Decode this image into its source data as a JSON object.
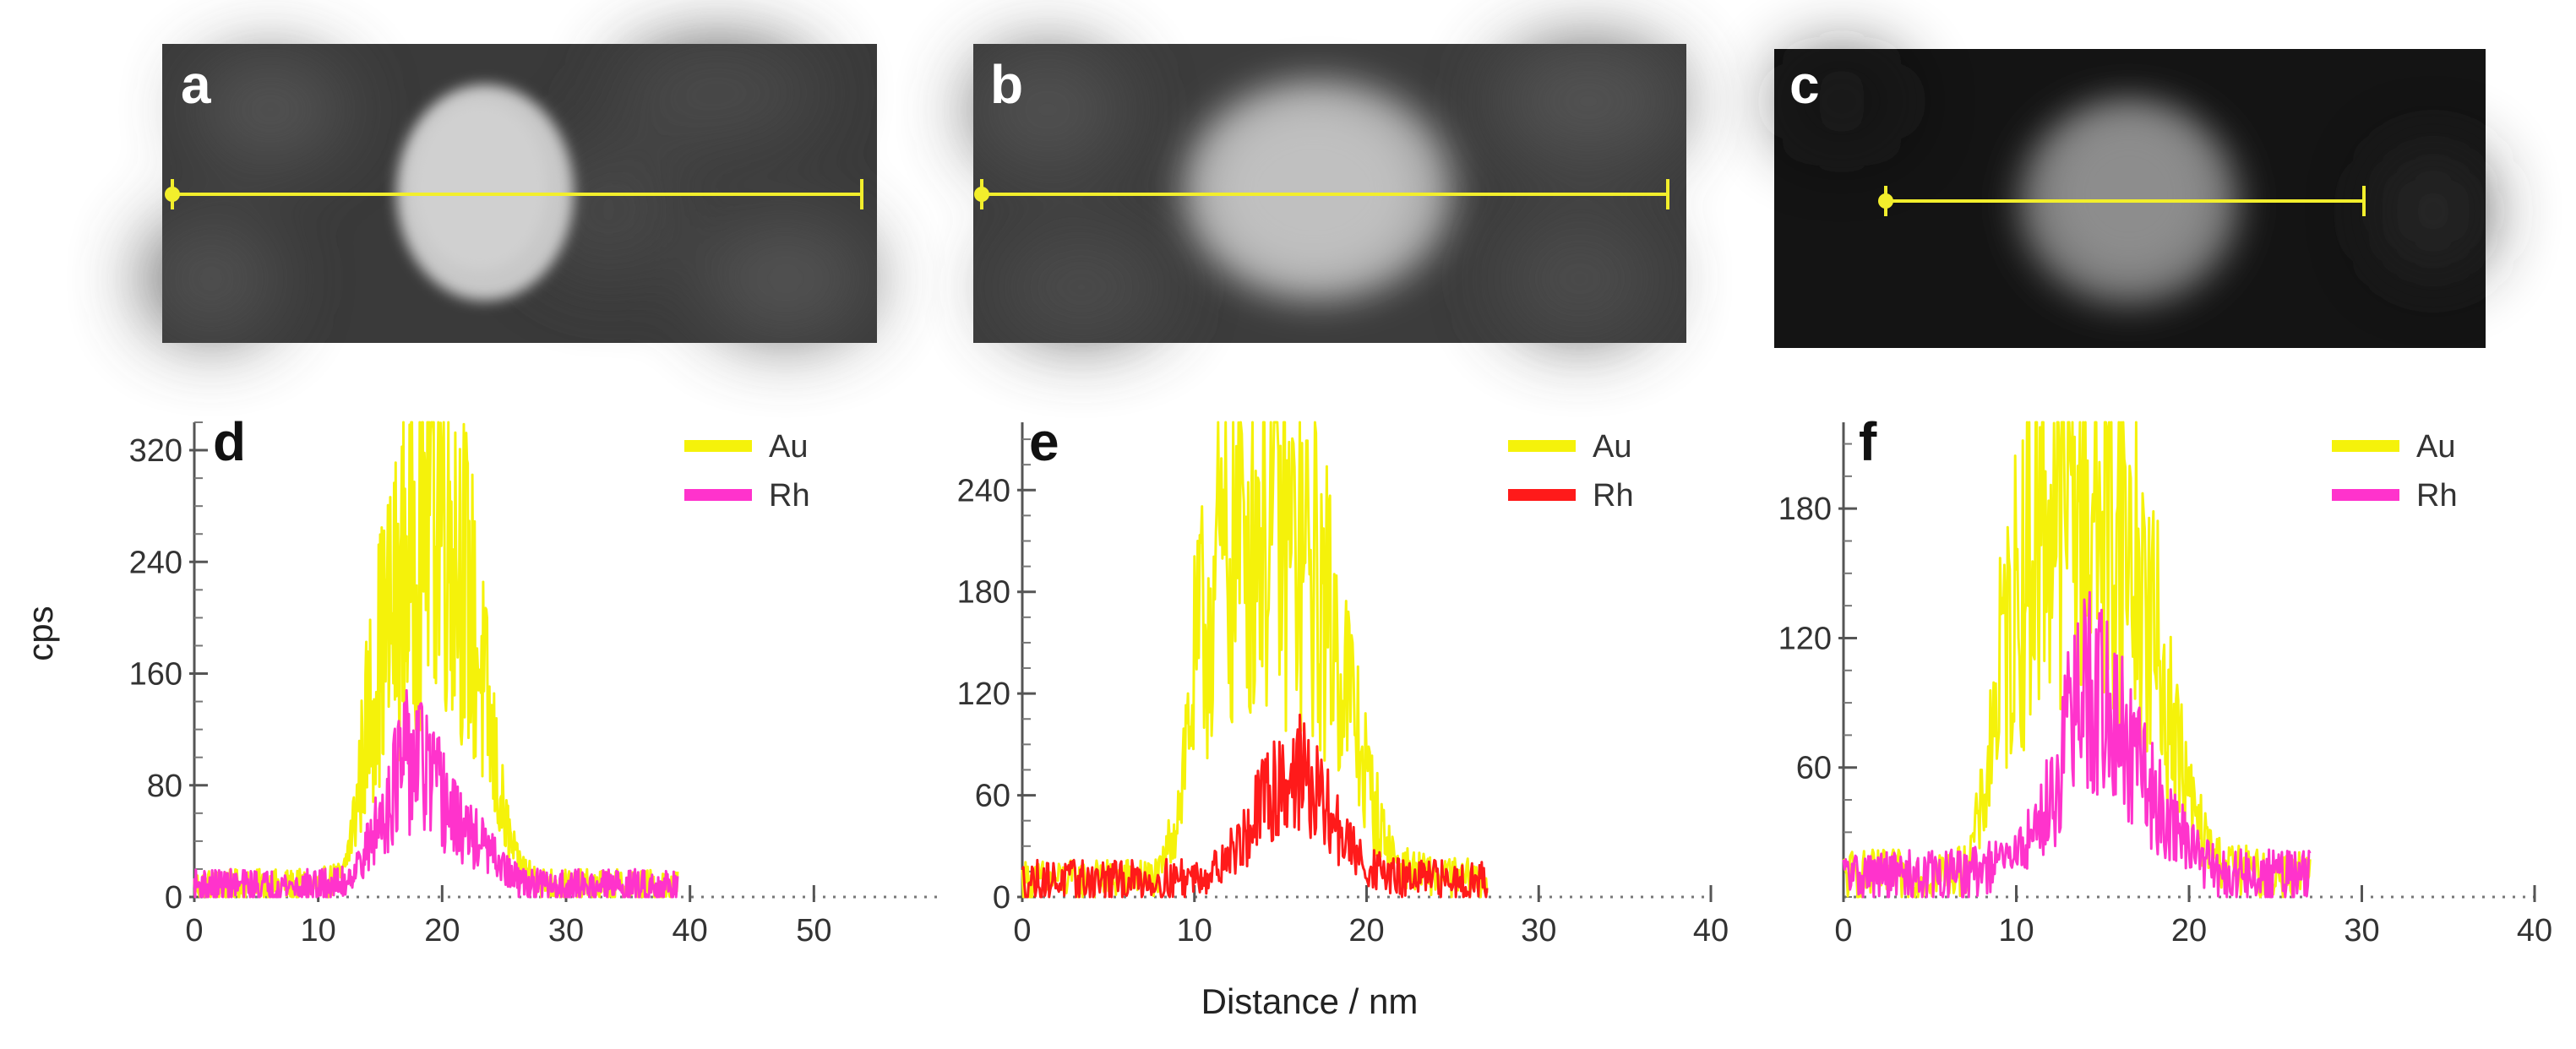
{
  "figure": {
    "x_axis_title": "Distance / nm",
    "y_axis_title": "cps"
  },
  "images": [
    {
      "label": "a",
      "line_color": "#f2ee2c"
    },
    {
      "label": "b",
      "line_color": "#f2ee2c"
    },
    {
      "label": "c",
      "line_color": "#f2ee2c"
    }
  ],
  "chart_data": [
    {
      "panel": "d",
      "type": "line",
      "xlabel": "Distance / nm",
      "ylabel": "cps",
      "xlim": [
        0,
        60
      ],
      "ylim": [
        0,
        340
      ],
      "xticks": [
        0,
        10,
        20,
        30,
        40,
        50
      ],
      "yticks": [
        0,
        80,
        160,
        240,
        320
      ],
      "legend_position": "top-right",
      "series": [
        {
          "name": "Au",
          "color": "#f5f20a",
          "x": [
            0,
            5,
            10,
            12,
            13,
            14,
            15,
            16,
            17,
            18,
            19,
            20,
            21,
            22,
            23,
            24,
            25,
            26,
            28,
            30,
            35,
            39
          ],
          "y": [
            8,
            8,
            8,
            15,
            60,
            130,
            175,
            200,
            230,
            250,
            310,
            290,
            260,
            220,
            170,
            110,
            55,
            25,
            10,
            8,
            8,
            8
          ]
        },
        {
          "name": "Rh",
          "color": "#ff33cc",
          "x": [
            0,
            5,
            10,
            12,
            13,
            14,
            15,
            16,
            17,
            18,
            19,
            20,
            21,
            22,
            23,
            24,
            25,
            26,
            28,
            30,
            35,
            39
          ],
          "y": [
            8,
            8,
            8,
            10,
            20,
            35,
            55,
            80,
            95,
            100,
            85,
            70,
            55,
            45,
            40,
            30,
            20,
            12,
            8,
            8,
            8,
            8
          ]
        }
      ]
    },
    {
      "panel": "e",
      "type": "line",
      "xlabel": "Distance / nm",
      "ylabel": "cps",
      "xlim": [
        0,
        40
      ],
      "ylim": [
        0,
        280
      ],
      "xticks": [
        0,
        10,
        20,
        30,
        40
      ],
      "yticks": [
        0,
        60,
        120,
        180,
        240
      ],
      "legend_position": "top-right",
      "series": [
        {
          "name": "Au",
          "color": "#f5f20a",
          "x": [
            0,
            4,
            8,
            9,
            10,
            11,
            12,
            13,
            14,
            15,
            16,
            17,
            18,
            19,
            20,
            21,
            22,
            24,
            27
          ],
          "y": [
            10,
            10,
            12,
            50,
            130,
            180,
            200,
            220,
            230,
            215,
            200,
            185,
            160,
            120,
            70,
            35,
            18,
            12,
            10
          ]
        },
        {
          "name": "Rh",
          "color": "#ff1a1a",
          "x": [
            0,
            4,
            8,
            10,
            11,
            12,
            13,
            14,
            15,
            16,
            17,
            18,
            19,
            20,
            22,
            24,
            27
          ],
          "y": [
            10,
            10,
            10,
            12,
            15,
            25,
            35,
            55,
            70,
            75,
            60,
            45,
            30,
            18,
            10,
            10,
            10
          ]
        }
      ]
    },
    {
      "panel": "f",
      "type": "line",
      "xlabel": "Distance / nm",
      "ylabel": "cps",
      "xlim": [
        0,
        40
      ],
      "ylim": [
        0,
        220
      ],
      "xticks": [
        0,
        10,
        20,
        30,
        40
      ],
      "yticks": [
        60,
        120,
        180
      ],
      "legend_position": "top-right",
      "series": [
        {
          "name": "Au",
          "color": "#f5f20a",
          "x": [
            0,
            4,
            7,
            8,
            9,
            10,
            11,
            12,
            13,
            14,
            15,
            16,
            17,
            18,
            19,
            20,
            21,
            22,
            24,
            27
          ],
          "y": [
            10,
            10,
            12,
            40,
            100,
            140,
            165,
            185,
            195,
            190,
            180,
            170,
            150,
            120,
            80,
            45,
            25,
            15,
            10,
            10
          ]
        },
        {
          "name": "Rh",
          "color": "#ff33cc",
          "x": [
            0,
            4,
            7,
            9,
            10,
            11,
            12,
            13,
            14,
            15,
            16,
            17,
            18,
            19,
            20,
            21,
            22,
            24,
            27
          ],
          "y": [
            10,
            10,
            10,
            15,
            20,
            30,
            45,
            75,
            95,
            90,
            75,
            60,
            45,
            35,
            25,
            15,
            10,
            10,
            10
          ]
        }
      ]
    }
  ]
}
